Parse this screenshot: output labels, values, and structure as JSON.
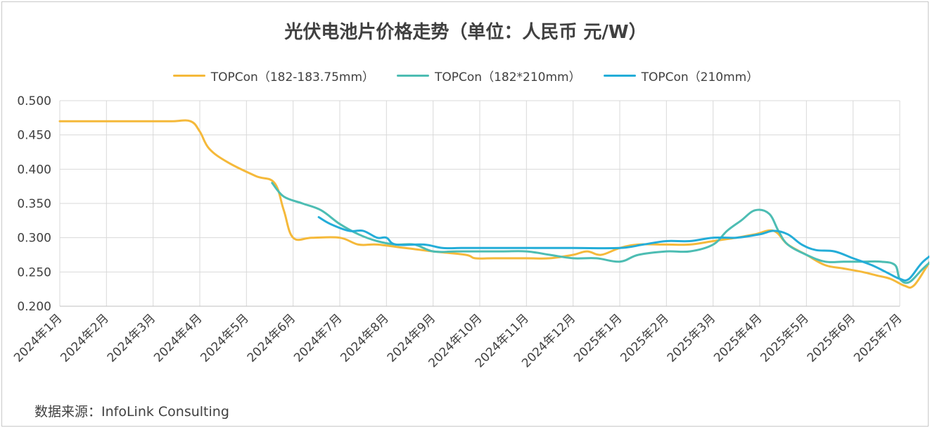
{
  "chart_data": {
    "type": "line",
    "title": "光伏电池片价格走势（单位：人民币 元/W）",
    "source": "数据来源：InfoLink Consulting",
    "xlabel": "",
    "ylabel": "",
    "categories": [
      "2024年1月",
      "2024年2月",
      "2024年3月",
      "2024年4月",
      "2024年5月",
      "2024年6月",
      "2024年7月",
      "2024年8月",
      "2024年9月",
      "2024年10月",
      "2024年11月",
      "2024年12月",
      "2025年1月",
      "2025年2月",
      "2025年3月",
      "2025年4月",
      "2025年5月",
      "2025年6月",
      "2025年7月"
    ],
    "ylim": [
      0.2,
      0.5
    ],
    "yticks": [
      "0.500",
      "0.450",
      "0.400",
      "0.350",
      "0.300",
      "0.250",
      "0.200"
    ],
    "grid": true,
    "legend_position": "top",
    "series": [
      {
        "name": "TOPCon（182-183.75mm）",
        "color": "#F5B93A",
        "points": [
          [
            0.0,
            0.47
          ],
          [
            0.6,
            0.47
          ],
          [
            1.2,
            0.47
          ],
          [
            1.8,
            0.47
          ],
          [
            2.4,
            0.47
          ],
          [
            2.8,
            0.47
          ],
          [
            3.0,
            0.455
          ],
          [
            3.2,
            0.43
          ],
          [
            3.6,
            0.41
          ],
          [
            4.2,
            0.39
          ],
          [
            4.6,
            0.38
          ],
          [
            4.8,
            0.34
          ],
          [
            5.0,
            0.3
          ],
          [
            5.4,
            0.3
          ],
          [
            6.0,
            0.3
          ],
          [
            6.4,
            0.29
          ],
          [
            6.8,
            0.29
          ],
          [
            7.4,
            0.285
          ],
          [
            8.0,
            0.28
          ],
          [
            8.7,
            0.275
          ],
          [
            8.9,
            0.27
          ],
          [
            9.3,
            0.27
          ],
          [
            10.0,
            0.27
          ],
          [
            10.5,
            0.27
          ],
          [
            11.0,
            0.275
          ],
          [
            11.3,
            0.28
          ],
          [
            11.6,
            0.275
          ],
          [
            12.0,
            0.285
          ],
          [
            12.4,
            0.29
          ],
          [
            13.0,
            0.29
          ],
          [
            13.5,
            0.29
          ],
          [
            14.0,
            0.295
          ],
          [
            14.5,
            0.3
          ],
          [
            14.9,
            0.305
          ],
          [
            15.3,
            0.31
          ],
          [
            15.6,
            0.29
          ],
          [
            16.0,
            0.275
          ],
          [
            16.4,
            0.26
          ],
          [
            16.8,
            0.255
          ],
          [
            17.2,
            0.25
          ],
          [
            17.5,
            0.245
          ],
          [
            17.8,
            0.24
          ],
          [
            18.1,
            0.23
          ],
          [
            18.3,
            0.23
          ],
          [
            18.6,
            0.26
          ],
          [
            18.9,
            0.29
          ]
        ]
      },
      {
        "name": "TOPCon（182*210mm）",
        "color": "#4DBDB3",
        "points": [
          [
            4.55,
            0.38
          ],
          [
            4.8,
            0.36
          ],
          [
            5.2,
            0.35
          ],
          [
            5.6,
            0.34
          ],
          [
            6.0,
            0.32
          ],
          [
            6.4,
            0.305
          ],
          [
            6.8,
            0.295
          ],
          [
            7.2,
            0.29
          ],
          [
            7.6,
            0.29
          ],
          [
            8.0,
            0.28
          ],
          [
            8.5,
            0.28
          ],
          [
            9.0,
            0.28
          ],
          [
            9.5,
            0.28
          ],
          [
            10.0,
            0.28
          ],
          [
            10.5,
            0.275
          ],
          [
            11.0,
            0.27
          ],
          [
            11.5,
            0.27
          ],
          [
            12.0,
            0.265
          ],
          [
            12.4,
            0.275
          ],
          [
            13.0,
            0.28
          ],
          [
            13.5,
            0.28
          ],
          [
            14.0,
            0.29
          ],
          [
            14.3,
            0.31
          ],
          [
            14.6,
            0.325
          ],
          [
            14.9,
            0.34
          ],
          [
            15.2,
            0.335
          ],
          [
            15.4,
            0.31
          ],
          [
            15.6,
            0.29
          ],
          [
            16.0,
            0.275
          ],
          [
            16.4,
            0.265
          ],
          [
            16.8,
            0.265
          ],
          [
            17.2,
            0.265
          ],
          [
            17.6,
            0.265
          ],
          [
            17.9,
            0.26
          ],
          [
            18.0,
            0.24
          ],
          [
            18.2,
            0.235
          ],
          [
            18.5,
            0.255
          ],
          [
            18.9,
            0.28
          ]
        ]
      },
      {
        "name": "TOPCon（210mm）",
        "color": "#24ADD8",
        "points": [
          [
            5.55,
            0.33
          ],
          [
            5.8,
            0.32
          ],
          [
            6.2,
            0.31
          ],
          [
            6.5,
            0.31
          ],
          [
            6.8,
            0.3
          ],
          [
            7.0,
            0.3
          ],
          [
            7.2,
            0.29
          ],
          [
            7.8,
            0.29
          ],
          [
            8.2,
            0.285
          ],
          [
            8.6,
            0.285
          ],
          [
            9.0,
            0.285
          ],
          [
            10.0,
            0.285
          ],
          [
            11.0,
            0.285
          ],
          [
            12.0,
            0.285
          ],
          [
            12.5,
            0.29
          ],
          [
            13.0,
            0.295
          ],
          [
            13.5,
            0.295
          ],
          [
            14.0,
            0.3
          ],
          [
            14.5,
            0.3
          ],
          [
            15.0,
            0.305
          ],
          [
            15.3,
            0.31
          ],
          [
            15.6,
            0.305
          ],
          [
            15.9,
            0.29
          ],
          [
            16.2,
            0.282
          ],
          [
            16.6,
            0.28
          ],
          [
            17.0,
            0.27
          ],
          [
            17.4,
            0.26
          ],
          [
            17.7,
            0.25
          ],
          [
            18.0,
            0.24
          ],
          [
            18.2,
            0.24
          ],
          [
            18.5,
            0.265
          ],
          [
            18.9,
            0.285
          ]
        ]
      }
    ]
  }
}
